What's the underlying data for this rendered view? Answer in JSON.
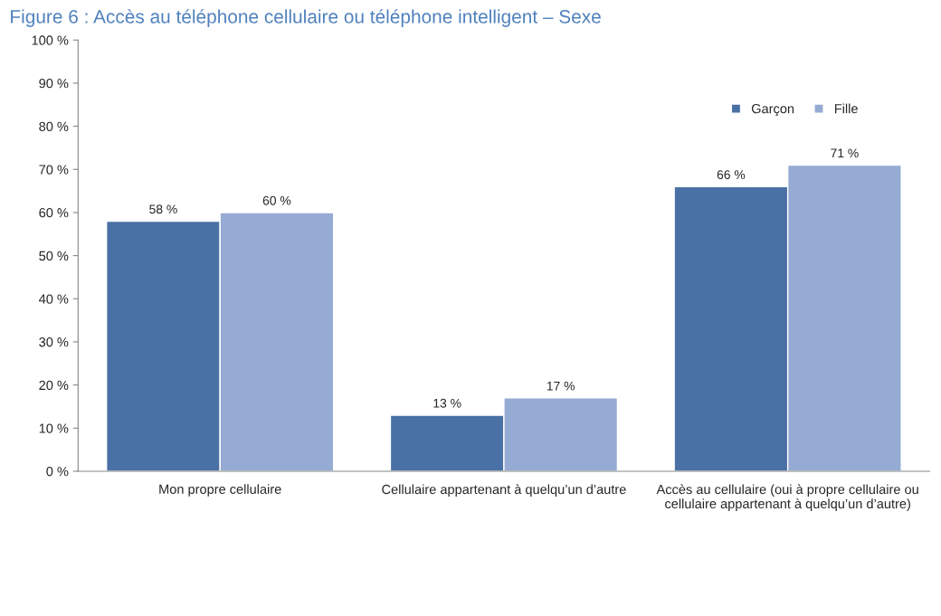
{
  "chart_data": {
    "type": "bar",
    "title": "Figure 6 : Accès au téléphone cellulaire ou téléphone intelligent – Sexe",
    "categories": [
      "Mon propre cellulaire",
      "Cellulaire appartenant à quelqu’un d’autre",
      "Accès au cellulaire (oui à propre cellulaire ou cellulaire appartenant à quelqu’un d’autre)"
    ],
    "series": [
      {
        "name": "Garçon",
        "color": "#4a71a5",
        "values": [
          58,
          13,
          66
        ],
        "value_labels": [
          "58 %",
          "13 %",
          "66 %"
        ]
      },
      {
        "name": "Fille",
        "color": "#95abd3",
        "values": [
          60,
          17,
          71
        ],
        "value_labels": [
          "60 %",
          "17 %",
          "71 %"
        ]
      }
    ],
    "ylim": [
      0,
      100
    ],
    "yticks": [
      {
        "value": 0,
        "label": "0 %"
      },
      {
        "value": 10,
        "label": "10 %"
      },
      {
        "value": 20,
        "label": "20 %"
      },
      {
        "value": 30,
        "label": "30 %"
      },
      {
        "value": 40,
        "label": "40 %"
      },
      {
        "value": 50,
        "label": "50 %"
      },
      {
        "value": 60,
        "label": "60 %"
      },
      {
        "value": 70,
        "label": "70 %"
      },
      {
        "value": 80,
        "label": "80 %"
      },
      {
        "value": 90,
        "label": "90 %"
      },
      {
        "value": 100,
        "label": "100 %"
      }
    ],
    "grid": false,
    "legend": "top right"
  }
}
